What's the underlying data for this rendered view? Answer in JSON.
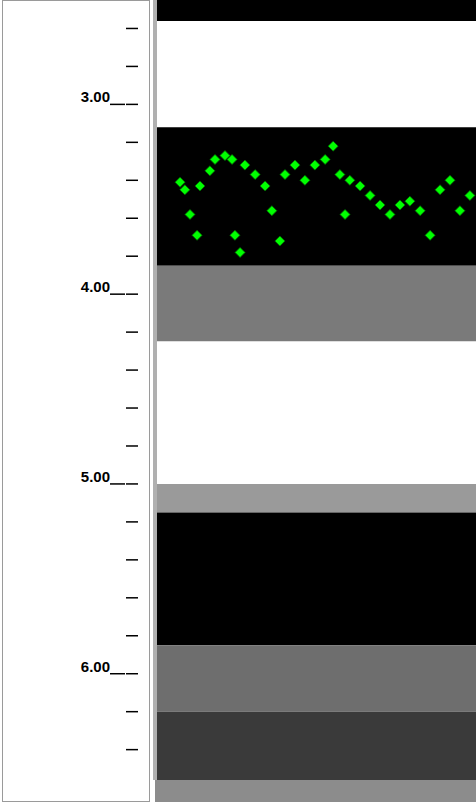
{
  "chart_data": {
    "type": "scatter",
    "tick_labels": "y",
    "marker": "diamond",
    "color": "#00ff00",
    "xlim": [
      0,
      100
    ],
    "ylim": [
      2.45,
      6.56
    ],
    "yticks": [
      {
        "value": 3,
        "label": "3.00"
      },
      {
        "value": 4,
        "label": "4.00"
      },
      {
        "value": 5,
        "label": "5.00"
      },
      {
        "value": 6,
        "label": "6.00"
      }
    ],
    "minor_yticks": [
      2.6,
      2.8,
      3.2,
      3.4,
      3.6,
      3.8,
      4.2,
      4.4,
      4.6,
      4.8,
      5.2,
      5.4,
      5.6,
      5.8,
      6.2,
      6.4
    ],
    "bands": [
      {
        "from": 2.45,
        "to": 2.56,
        "color": "#000000"
      },
      {
        "from": 2.56,
        "to": 3.12,
        "color": "#ffffff"
      },
      {
        "from": 3.12,
        "to": 3.85,
        "color": "#000000"
      },
      {
        "from": 3.85,
        "to": 4.25,
        "color": "#7a7a7a"
      },
      {
        "from": 4.25,
        "to": 5.0,
        "color": "#ffffff"
      },
      {
        "from": 5.0,
        "to": 5.15,
        "color": "#9a9a9a"
      },
      {
        "from": 5.15,
        "to": 5.85,
        "color": "#000000"
      },
      {
        "from": 5.85,
        "to": 6.2,
        "color": "#6e6e6e"
      },
      {
        "from": 6.2,
        "to": 6.56,
        "color": "#3a3a3a"
      }
    ],
    "x": [
      7.8,
      9.3,
      10.9,
      13.1,
      14.0,
      17.1,
      18.7,
      21.8,
      24.0,
      24.9,
      26.5,
      28.0,
      31.2,
      34.3,
      36.4,
      38.9,
      40.5,
      43.6,
      46.7,
      49.8,
      53.0,
      55.5,
      57.6,
      59.2,
      60.7,
      63.9,
      67.0,
      70.1,
      73.2,
      76.3,
      79.4,
      82.6,
      85.7,
      88.8,
      91.9,
      95.0,
      98.1
    ],
    "values": [
      3.41,
      3.45,
      3.58,
      3.69,
      3.43,
      3.35,
      3.29,
      3.27,
      3.29,
      3.69,
      3.78,
      3.32,
      3.37,
      3.43,
      3.56,
      3.72,
      3.37,
      3.32,
      3.4,
      3.32,
      3.29,
      3.22,
      3.37,
      3.58,
      3.4,
      3.43,
      3.48,
      3.53,
      3.58,
      3.53,
      3.51,
      3.56,
      3.69,
      3.45,
      3.4,
      3.56,
      3.48
    ]
  }
}
